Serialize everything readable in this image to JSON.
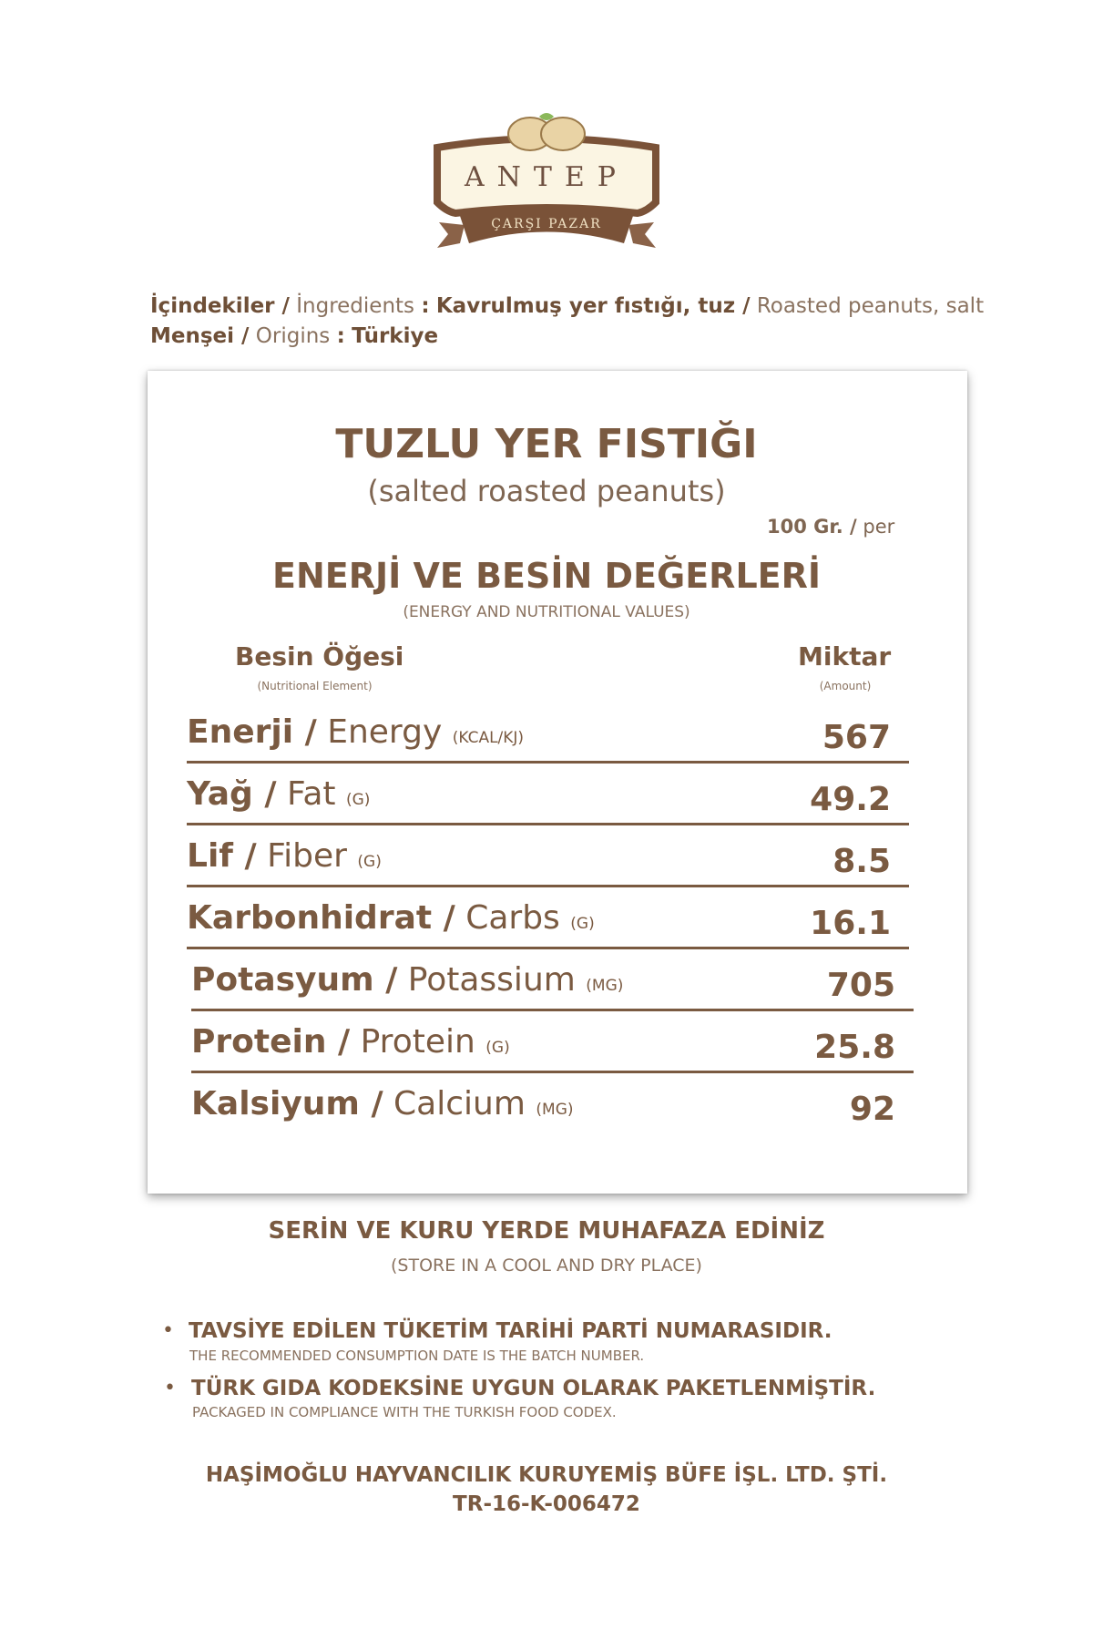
{
  "logo": {
    "line1": "ANTEP",
    "line2": "ÇARŞI PAZAR"
  },
  "ingredients": {
    "label_tr": "İçindekiler /",
    "label_en": "İngredients",
    "sep": ":",
    "value_tr": "Kavrulmuş yer fıstığı, tuz /",
    "value_en": "Roasted peanuts, salt"
  },
  "origin": {
    "label_tr": "Menşei /",
    "label_en": "Origins",
    "sep": ":",
    "value": "Türkiye"
  },
  "card": {
    "title": "TUZLU YER FISTIĞI",
    "subtitle": "(salted roasted peanuts)",
    "per_bold": "100 Gr. /",
    "per": "per",
    "heading": "ENERJİ VE BESİN DEĞERLERİ",
    "heading_sub": "(ENERGY AND NUTRITIONAL VALUES)",
    "col_element": "Besin Öğesi",
    "col_element_sub": "(Nutritional Element)",
    "col_amount": "Miktar",
    "col_amount_sub": "(Amount)",
    "rows": [
      {
        "tr": "Enerji /",
        "en": "Energy",
        "unit": "(KCAL/KJ)",
        "value": "567"
      },
      {
        "tr": "Yağ /",
        "en": "Fat",
        "unit": "(G)",
        "value": "49.2"
      },
      {
        "tr": "Lif /",
        "en": "Fiber",
        "unit": "(G)",
        "value": "8.5"
      },
      {
        "tr": "Karbonhidrat /",
        "en": "Carbs",
        "unit": "(G)",
        "value": "16.1"
      },
      {
        "tr": "Potasyum /",
        "en": "Potassium",
        "unit": "(MG)",
        "value": "705"
      },
      {
        "tr": "Protein /",
        "en": "Protein",
        "unit": "(G)",
        "value": "25.8"
      },
      {
        "tr": "Kalsiyum /",
        "en": "Calcium",
        "unit": "(MG)",
        "value": "92"
      }
    ]
  },
  "storage": {
    "tr": "SERİN VE KURU YERDE MUHAFAZA EDİNİZ",
    "en": "(STORE IN A COOL AND DRY PLACE)"
  },
  "notes": [
    {
      "tr": "TAVSİYE EDİLEN TÜKETİM TARİHİ PARTİ NUMARASIDIR.",
      "en": "THE RECOMMENDED CONSUMPTION DATE IS THE BATCH NUMBER."
    },
    {
      "tr": "TÜRK GIDA KODEKSİNE UYGUN OLARAK PAKETLENMİŞTİR.",
      "en": "PACKAGED IN COMPLIANCE WITH THE TURKISH FOOD CODEX."
    }
  ],
  "company": {
    "name": "HAŞİMOĞLU HAYVANCILIK KURUYEMİŞ BÜFE İŞL. LTD. ŞTİ.",
    "code": "TR-16-K-006472"
  },
  "colors": {
    "brown": "#7a5a41",
    "cream": "#fbf5e3",
    "green": "#8bb85a"
  }
}
